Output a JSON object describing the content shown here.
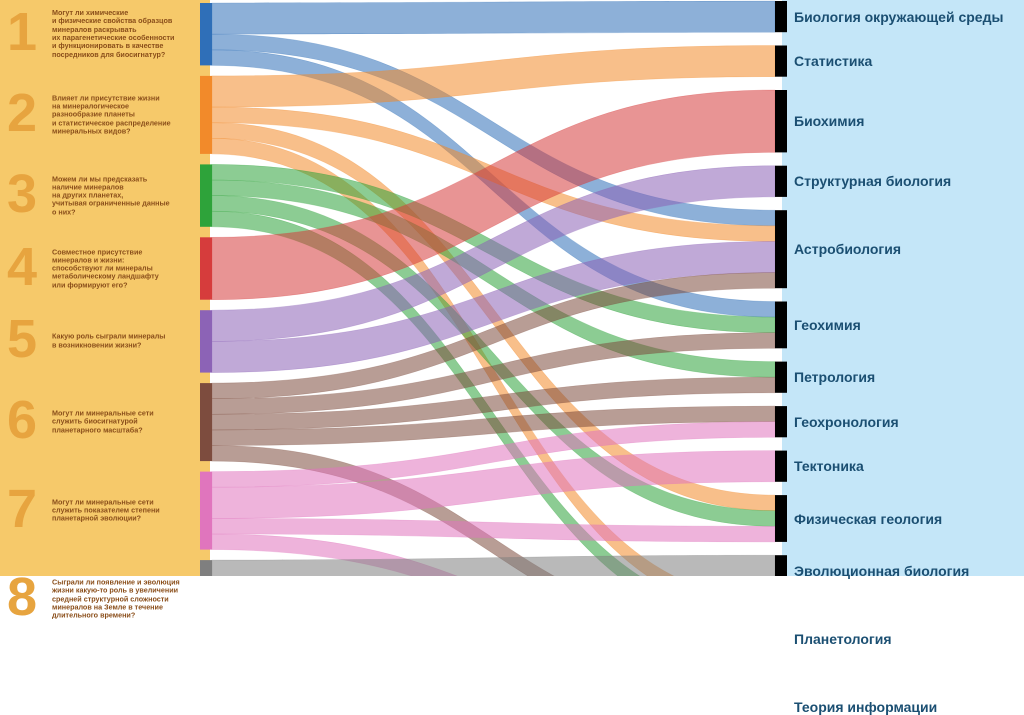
{
  "questions": [
    {
      "num": "1",
      "color": "#2f6fb8",
      "text": "Могут ли химические\nи физические свойства образцов\nминералов раскрывать\nих парагенетические особенности\nи функционировать в качестве\nпосредников для биосигнатур?"
    },
    {
      "num": "2",
      "color": "#f28a2a",
      "text": "Влияет ли присутствие жизни\nна минералогическое\nразнообразие планеты\nи статистическое распределение\nминеральных видов?"
    },
    {
      "num": "3",
      "color": "#2ea33a",
      "text": "Можем ли мы предсказать\nналичие минералов\nна других планетах,\nучитывая ограниченные данные\nо них?"
    },
    {
      "num": "4",
      "color": "#d63c3c",
      "text": "Совместное присутствие\nминералов и жизни:\nспособствуют ли минералы\nметаболическому ландшафту\nили формируют его?"
    },
    {
      "num": "5",
      "color": "#8c63b6",
      "text": "Какую роль сыграли минералы\nв возникновении жизни?"
    },
    {
      "num": "6",
      "color": "#7d4c3e",
      "text": "Могут ли минеральные сети\nслужить биосигнатурой\nпланетарного масштаба?"
    },
    {
      "num": "7",
      "color": "#e075bd",
      "text": "Могут ли минеральные сети\nслужить показателем степени\nпланетарной эволюции?"
    },
    {
      "num": "8",
      "color": "#7f7f7f",
      "text": "Сыграли ли появление и эволюция\nжизни какую-то роль в увеличении\nсредней структурной сложности\nминералов на Земле в течение\nдлительного времени?"
    }
  ],
  "topics": [
    "Биология окружающей среды",
    "Статистика",
    "Биохимия",
    "Структурная биология",
    "Астробиология",
    "Геохимия",
    "Петрология",
    "Геохронология",
    "Тектоника",
    "Физическая геология",
    "Эволюционная биология",
    "Планетология",
    "Теория информации"
  ],
  "links": [
    {
      "q": 1,
      "t": "Биология окружающей среды",
      "w": 2
    },
    {
      "q": 1,
      "t": "Астробиология",
      "w": 1
    },
    {
      "q": 1,
      "t": "Геохимия",
      "w": 1
    },
    {
      "q": 2,
      "t": "Статистика",
      "w": 2
    },
    {
      "q": 2,
      "t": "Астробиология",
      "w": 1
    },
    {
      "q": 2,
      "t": "Физическая геология",
      "w": 1
    },
    {
      "q": 2,
      "t": "Планетология",
      "w": 1
    },
    {
      "q": 3,
      "t": "Геохимия",
      "w": 1
    },
    {
      "q": 3,
      "t": "Петрология",
      "w": 1
    },
    {
      "q": 3,
      "t": "Физическая геология",
      "w": 1
    },
    {
      "q": 3,
      "t": "Планетология",
      "w": 1
    },
    {
      "q": 4,
      "t": "Биохимия",
      "w": 4
    },
    {
      "q": 5,
      "t": "Структурная биология",
      "w": 2
    },
    {
      "q": 5,
      "t": "Астробиология",
      "w": 2
    },
    {
      "q": 6,
      "t": "Астробиология",
      "w": 1
    },
    {
      "q": 6,
      "t": "Геохимия",
      "w": 1
    },
    {
      "q": 6,
      "t": "Петрология",
      "w": 1
    },
    {
      "q": 6,
      "t": "Геохронология",
      "w": 1
    },
    {
      "q": 6,
      "t": "Планетология",
      "w": 1
    },
    {
      "q": 7,
      "t": "Геохронология",
      "w": 1
    },
    {
      "q": 7,
      "t": "Тектоника",
      "w": 2
    },
    {
      "q": 7,
      "t": "Физическая геология",
      "w": 1
    },
    {
      "q": 7,
      "t": "Планетология",
      "w": 1
    },
    {
      "q": 8,
      "t": "Эволюционная биология",
      "w": 2
    },
    {
      "q": 8,
      "t": "Планетология",
      "w": 1
    },
    {
      "q": 8,
      "t": "Теория информации",
      "w": 2
    }
  ]
}
